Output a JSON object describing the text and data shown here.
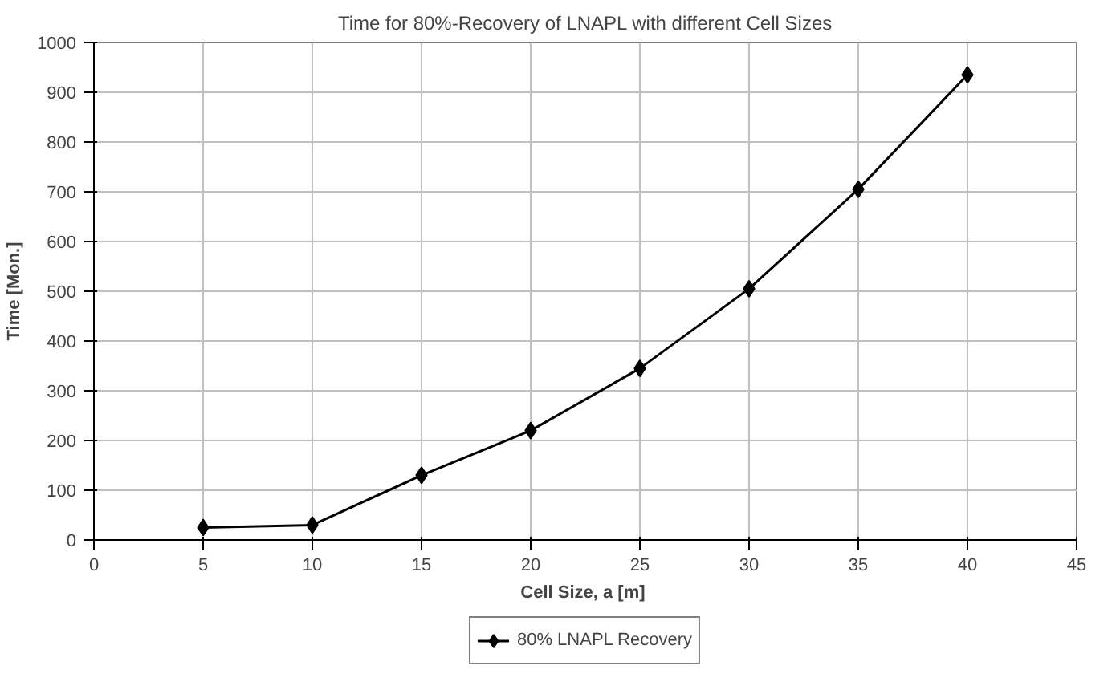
{
  "chart_data": {
    "type": "line",
    "title": "Time for 80%-Recovery of LNAPL with different Cell Sizes",
    "xlabel": "Cell Size, a  [m]",
    "ylabel": "Time [Mon.]",
    "x": [
      5,
      10,
      15,
      20,
      25,
      30,
      35,
      40
    ],
    "series": [
      {
        "name": "80% LNAPL Recovery",
        "color": "#000000",
        "values": [
          25,
          30,
          130,
          220,
          345,
          505,
          705,
          935
        ]
      }
    ],
    "xlim": [
      0,
      45
    ],
    "xticks": [
      0,
      5,
      10,
      15,
      20,
      25,
      30,
      35,
      40,
      45
    ],
    "ylim": [
      0,
      1000
    ],
    "yticks": [
      0,
      100,
      200,
      300,
      400,
      500,
      600,
      700,
      800,
      900,
      1000
    ],
    "grid": true,
    "legend": "bottom",
    "marker": "diamond",
    "line_style": "solid"
  }
}
